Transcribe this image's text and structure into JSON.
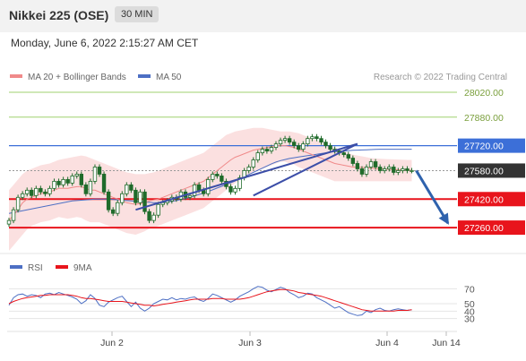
{
  "header": {
    "title": "Nikkei 225 (OSE)",
    "timeframe": "30 MIN"
  },
  "date_line": "Monday, June 6, 2022 2:15:27 AM CET",
  "legend": {
    "ma20": "MA 20 + Bollinger Bands",
    "ma50": "MA 50",
    "copyright": "Research © 2022 Trading Central"
  },
  "rsi_legend": {
    "rsi": "RSI",
    "ma9": "9MA"
  },
  "colors": {
    "candle": "#1f6b2a",
    "ma20": "#f08a8a",
    "band": "#fadada",
    "ma50": "#4d6fc4",
    "resistance_green": "#9fd16f",
    "resistance_blue": "#3c6fd8",
    "support_red": "#e8141c",
    "last_price": "#333333",
    "trend": "#3c4ea8",
    "arrow": "#2f62ad"
  },
  "chart_data": [
    {
      "type": "candlestick",
      "title": "Nikkei 225 (OSE)",
      "x_labels": [
        "Jun 2",
        "Jun 3",
        "Jun 4",
        "Jun 14"
      ],
      "ylim": [
        27180,
        28060
      ],
      "levels": [
        {
          "value": 28020.0,
          "label": "28020.00",
          "kind": "resistance"
        },
        {
          "value": 27880.0,
          "label": "27880.00",
          "kind": "resistance"
        },
        {
          "value": 27720.0,
          "label": "27720.00",
          "kind": "pivot"
        },
        {
          "value": 27580.0,
          "label": "27580.00",
          "kind": "last"
        },
        {
          "value": 27420.0,
          "label": "27420.00",
          "kind": "support"
        },
        {
          "value": 27260.0,
          "label": "27260.00",
          "kind": "support"
        }
      ],
      "price": [
        27300,
        27360,
        27430,
        27450,
        27470,
        27440,
        27480,
        27460,
        27450,
        27480,
        27520,
        27500,
        27530,
        27510,
        27550,
        27560,
        27500,
        27450,
        27520,
        27600,
        27560,
        27460,
        27360,
        27340,
        27400,
        27450,
        27500,
        27470,
        27400,
        27460,
        27350,
        27300,
        27330,
        27390,
        27400,
        27410,
        27430,
        27420,
        27460,
        27430,
        27440,
        27500,
        27470,
        27450,
        27530,
        27560,
        27550,
        27520,
        27490,
        27460,
        27480,
        27540,
        27580,
        27600,
        27640,
        27680,
        27700,
        27690,
        27710,
        27730,
        27750,
        27760,
        27740,
        27720,
        27700,
        27730,
        27760,
        27770,
        27760,
        27740,
        27720,
        27700,
        27690,
        27680,
        27670,
        27650,
        27620,
        27590,
        27560,
        27600,
        27630,
        27600,
        27580,
        27590,
        27600,
        27570,
        27580,
        27590,
        27580,
        27580
      ],
      "ma20": [
        27300,
        27330,
        27360,
        27400,
        27420,
        27430,
        27440,
        27450,
        27455,
        27460,
        27470,
        27480,
        27480,
        27480,
        27485,
        27490,
        27490,
        27480,
        27470,
        27470,
        27460,
        27450,
        27440,
        27430,
        27420,
        27410,
        27400,
        27395,
        27390,
        27395,
        27400,
        27410,
        27415,
        27420,
        27430,
        27440,
        27450,
        27460,
        27470,
        27480,
        27490,
        27500,
        27510,
        27520,
        27540,
        27560,
        27580,
        27600,
        27620,
        27640,
        27655,
        27665,
        27675,
        27685,
        27695,
        27700,
        27705,
        27710,
        27715,
        27720,
        27720,
        27720,
        27715,
        27710,
        27700,
        27690,
        27680,
        27670,
        27660,
        27650,
        27640,
        27630,
        27620,
        27615,
        27610,
        27605,
        27600,
        27600,
        27598,
        27596,
        27594,
        27592,
        27590,
        27590,
        27588,
        27586,
        27585,
        27584,
        27583,
        27582
      ],
      "bb_upper": [
        27470,
        27500,
        27530,
        27560,
        27580,
        27590,
        27600,
        27610,
        27615,
        27620,
        27630,
        27640,
        27645,
        27650,
        27655,
        27660,
        27665,
        27660,
        27650,
        27640,
        27630,
        27620,
        27610,
        27600,
        27590,
        27580,
        27570,
        27565,
        27560,
        27560,
        27560,
        27565,
        27570,
        27580,
        27590,
        27600,
        27610,
        27620,
        27630,
        27640,
        27650,
        27660,
        27670,
        27680,
        27700,
        27720,
        27740,
        27760,
        27780,
        27790,
        27800,
        27805,
        27810,
        27815,
        27820,
        27820,
        27820,
        27815,
        27810,
        27805,
        27800,
        27800,
        27800,
        27795,
        27790,
        27780,
        27770,
        27760,
        27750,
        27740,
        27730,
        27720,
        27710,
        27700,
        27690,
        27680,
        27670,
        27665,
        27660,
        27655,
        27650,
        27648,
        27646,
        27645,
        27644,
        27643,
        27642,
        27641,
        27640,
        27640
      ],
      "bb_lower": [
        27130,
        27160,
        27190,
        27220,
        27250,
        27270,
        27280,
        27290,
        27295,
        27300,
        27310,
        27320,
        27315,
        27310,
        27315,
        27320,
        27315,
        27300,
        27290,
        27290,
        27290,
        27280,
        27270,
        27260,
        27250,
        27240,
        27230,
        27225,
        27220,
        27230,
        27240,
        27255,
        27260,
        27270,
        27280,
        27290,
        27300,
        27310,
        27320,
        27330,
        27340,
        27350,
        27360,
        27370,
        27390,
        27410,
        27430,
        27450,
        27470,
        27490,
        27510,
        27525,
        27540,
        27555,
        27570,
        27580,
        27590,
        27600,
        27610,
        27620,
        27630,
        27630,
        27620,
        27615,
        27600,
        27590,
        27580,
        27570,
        27560,
        27550,
        27540,
        27530,
        27520,
        27520,
        27520,
        27520,
        27520,
        27520,
        27520,
        27520,
        27520,
        27520,
        27520,
        27520,
        27520,
        27520,
        27520,
        27520,
        27520,
        27520
      ],
      "ma50": [
        27340,
        27345,
        27350,
        27355,
        27360,
        27365,
        27370,
        27375,
        27380,
        27385,
        27390,
        27395,
        27400,
        27405,
        27410,
        27412,
        27414,
        27416,
        27418,
        27420,
        27420,
        27420,
        27420,
        27418,
        27416,
        27414,
        27412,
        27410,
        27408,
        27406,
        27404,
        27402,
        27400,
        27400,
        27402,
        27404,
        27408,
        27412,
        27418,
        27424,
        27430,
        27438,
        27446,
        27454,
        27462,
        27472,
        27482,
        27492,
        27502,
        27512,
        27522,
        27534,
        27546,
        27558,
        27570,
        27582,
        27594,
        27606,
        27618,
        27628,
        27636,
        27642,
        27648,
        27652,
        27656,
        27660,
        27664,
        27668,
        27672,
        27676,
        27680,
        27684,
        27686,
        27688,
        27690,
        27692,
        27694,
        27695,
        27696,
        27697,
        27698,
        27699,
        27700,
        27700,
        27700,
        27700,
        27700,
        27700,
        27700,
        27700
      ],
      "trendlines": [
        {
          "from_index": 28,
          "from_value": 27360,
          "to_index": 77,
          "to_value": 27730
        },
        {
          "from_index": 54,
          "from_value": 27440,
          "to_index": 77,
          "to_value": 27730
        }
      ],
      "forecast_arrow": {
        "from_index": 90,
        "from_value": 27580,
        "to_index": 97,
        "to_value": 27285
      }
    },
    {
      "type": "line",
      "title": "RSI",
      "ylim": [
        20,
        80
      ],
      "levels": [
        {
          "value": 70,
          "label": "70"
        },
        {
          "value": 50,
          "label": "50"
        },
        {
          "value": 40,
          "label": "40"
        },
        {
          "value": 30,
          "label": "30"
        }
      ],
      "series": [
        {
          "name": "RSI",
          "values": [
            48,
            58,
            62,
            63,
            60,
            62,
            61,
            58,
            63,
            64,
            62,
            65,
            63,
            61,
            59,
            56,
            50,
            54,
            62,
            57,
            48,
            46,
            52,
            55,
            58,
            60,
            53,
            46,
            52,
            44,
            40,
            44,
            50,
            53,
            56,
            55,
            58,
            55,
            57,
            56,
            58,
            59,
            55,
            53,
            57,
            63,
            61,
            58,
            55,
            52,
            55,
            60,
            63,
            66,
            70,
            73,
            72,
            68,
            66,
            69,
            72,
            70,
            65,
            62,
            58,
            60,
            64,
            63,
            58,
            55,
            52,
            48,
            44,
            46,
            42,
            38,
            36,
            34,
            35,
            40,
            38,
            42,
            44,
            41,
            40,
            42,
            43,
            42,
            41,
            42
          ]
        },
        {
          "name": "9MA",
          "values": [
            50,
            53,
            55,
            57,
            58,
            59,
            60,
            61,
            61,
            62,
            62,
            62,
            62,
            62,
            61,
            60,
            58,
            57,
            57,
            56,
            55,
            54,
            53,
            53,
            53,
            53,
            52,
            51,
            50,
            49,
            48,
            48,
            47,
            48,
            49,
            50,
            51,
            52,
            53,
            54,
            55,
            56,
            56,
            56,
            56,
            57,
            57,
            57,
            56,
            56,
            56,
            56,
            57,
            58,
            60,
            62,
            64,
            66,
            67,
            68,
            69,
            69,
            68,
            67,
            65,
            64,
            63,
            62,
            61,
            60,
            58,
            56,
            54,
            52,
            50,
            48,
            46,
            44,
            42,
            41,
            40,
            40,
            40,
            40,
            40,
            40,
            41,
            41,
            41,
            42
          ]
        }
      ]
    }
  ]
}
